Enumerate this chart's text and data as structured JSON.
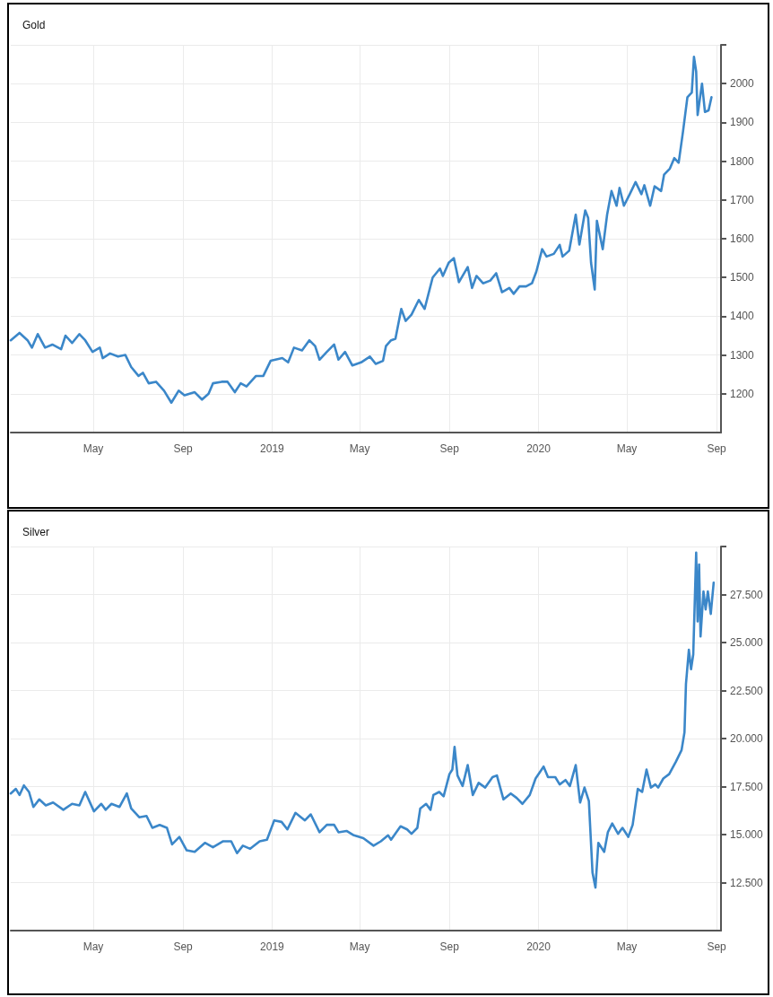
{
  "chart_data": [
    {
      "type": "line",
      "title": "Gold",
      "grid": true,
      "marker": "none",
      "line_style": "solid",
      "xlim": [
        "2018-01-08",
        "2020-09-07"
      ],
      "xticks": [
        {
          "value": "2018-05-01",
          "label": "May"
        },
        {
          "value": "2018-09-01",
          "label": "Sep"
        },
        {
          "value": "2019-01-01",
          "label": "2019"
        },
        {
          "value": "2019-05-01",
          "label": "May"
        },
        {
          "value": "2019-09-01",
          "label": "Sep"
        },
        {
          "value": "2020-01-01",
          "label": "2020"
        },
        {
          "value": "2020-05-01",
          "label": "May"
        },
        {
          "value": "2020-09-01",
          "label": "Sep"
        }
      ],
      "ylim": [
        1100,
        2100
      ],
      "yticks": [
        1200,
        1300,
        1400,
        1500,
        1600,
        1700,
        1800,
        1900,
        2000,
        {
          "value": 2100,
          "label": null
        }
      ],
      "series": [
        {
          "color": "#3b87c9",
          "x": [
            "2018-01-08",
            "2018-01-20",
            "2018-01-31",
            "2018-02-06",
            "2018-02-14",
            "2018-02-24",
            "2018-03-06",
            "2018-03-18",
            "2018-03-24",
            "2018-04-02",
            "2018-04-12",
            "2018-04-20",
            "2018-04-30",
            "2018-05-10",
            "2018-05-14",
            "2018-05-24",
            "2018-06-04",
            "2018-06-14",
            "2018-06-22",
            "2018-07-02",
            "2018-07-08",
            "2018-07-16",
            "2018-07-26",
            "2018-08-06",
            "2018-08-16",
            "2018-08-26",
            "2018-09-03",
            "2018-09-17",
            "2018-09-27",
            "2018-10-06",
            "2018-10-12",
            "2018-10-24",
            "2018-11-01",
            "2018-11-11",
            "2018-11-19",
            "2018-11-27",
            "2018-12-10",
            "2018-12-20",
            "2018-12-30",
            "2019-01-15",
            "2019-01-23",
            "2019-01-31",
            "2019-02-11",
            "2019-02-21",
            "2019-03-01",
            "2019-03-07",
            "2019-03-17",
            "2019-03-27",
            "2019-04-02",
            "2019-04-11",
            "2019-04-21",
            "2019-05-03",
            "2019-05-15",
            "2019-05-23",
            "2019-06-02",
            "2019-06-06",
            "2019-06-13",
            "2019-06-19",
            "2019-06-27",
            "2019-07-03",
            "2019-07-11",
            "2019-07-21",
            "2019-07-29",
            "2019-08-09",
            "2019-08-19",
            "2019-08-23",
            "2019-08-31",
            "2019-09-07",
            "2019-09-14",
            "2019-09-26",
            "2019-10-02",
            "2019-10-08",
            "2019-10-17",
            "2019-10-27",
            "2019-11-04",
            "2019-11-12",
            "2019-11-22",
            "2019-11-28",
            "2019-12-06",
            "2019-12-15",
            "2019-12-23",
            "2019-12-29",
            "2020-01-06",
            "2020-01-12",
            "2020-01-22",
            "2020-01-30",
            "2020-02-03",
            "2020-02-12",
            "2020-02-21",
            "2020-02-26",
            "2020-03-05",
            "2020-03-09",
            "2020-03-13",
            "2020-03-18",
            "2020-03-21",
            "2020-03-29",
            "2020-04-04",
            "2020-04-10",
            "2020-04-17",
            "2020-04-21",
            "2020-04-27",
            "2020-05-05",
            "2020-05-13",
            "2020-05-21",
            "2020-05-25",
            "2020-06-02",
            "2020-06-08",
            "2020-06-17",
            "2020-06-21",
            "2020-06-29",
            "2020-07-05",
            "2020-07-11",
            "2020-07-17",
            "2020-07-23",
            "2020-07-29",
            "2020-08-01",
            "2020-08-04",
            "2020-08-06",
            "2020-08-12",
            "2020-08-16",
            "2020-08-21",
            "2020-08-25"
          ],
          "values": [
            1338,
            1357,
            1338,
            1319,
            1354,
            1319,
            1327,
            1315,
            1350,
            1331,
            1354,
            1338,
            1308,
            1319,
            1292,
            1304,
            1296,
            1300,
            1269,
            1246,
            1254,
            1227,
            1231,
            1208,
            1177,
            1208,
            1196,
            1204,
            1185,
            1200,
            1227,
            1231,
            1231,
            1204,
            1227,
            1219,
            1246,
            1246,
            1285,
            1292,
            1281,
            1319,
            1312,
            1338,
            1323,
            1288,
            1308,
            1327,
            1288,
            1308,
            1273,
            1281,
            1296,
            1277,
            1285,
            1323,
            1338,
            1342,
            1419,
            1388,
            1404,
            1442,
            1419,
            1500,
            1523,
            1504,
            1538,
            1550,
            1488,
            1527,
            1473,
            1504,
            1485,
            1492,
            1511,
            1462,
            1473,
            1458,
            1477,
            1477,
            1485,
            1515,
            1573,
            1554,
            1561,
            1584,
            1554,
            1569,
            1662,
            1585,
            1673,
            1654,
            1538,
            1469,
            1646,
            1573,
            1662,
            1723,
            1685,
            1731,
            1685,
            1715,
            1746,
            1715,
            1738,
            1685,
            1735,
            1723,
            1765,
            1781,
            1808,
            1796,
            1877,
            1965,
            1977,
            2069,
            2031,
            1919,
            2000,
            1927,
            1931,
            1965
          ]
        }
      ]
    },
    {
      "type": "line",
      "title": "Silver",
      "grid": true,
      "marker": "none",
      "line_style": "solid",
      "xlim": [
        "2018-01-08",
        "2020-09-07"
      ],
      "xticks": [
        {
          "value": "2018-05-01",
          "label": "May"
        },
        {
          "value": "2018-09-01",
          "label": "Sep"
        },
        {
          "value": "2019-01-01",
          "label": "2019"
        },
        {
          "value": "2019-05-01",
          "label": "May"
        },
        {
          "value": "2019-09-01",
          "label": "Sep"
        },
        {
          "value": "2020-01-01",
          "label": "2020"
        },
        {
          "value": "2020-05-01",
          "label": "May"
        },
        {
          "value": "2020-09-01",
          "label": "Sep"
        }
      ],
      "ylim": [
        10,
        30
      ],
      "yticks": [
        {
          "value": 12.5,
          "label": "12.500"
        },
        {
          "value": 15,
          "label": "15.000"
        },
        {
          "value": 17.5,
          "label": "17.500"
        },
        {
          "value": 20,
          "label": "20.000"
        },
        {
          "value": 22.5,
          "label": "22.500"
        },
        {
          "value": 25,
          "label": "25.000"
        },
        {
          "value": 27.5,
          "label": "27.500"
        },
        {
          "value": 30,
          "label": null
        }
      ],
      "series": [
        {
          "color": "#3b87c9",
          "x": [
            "2018-01-08",
            "2018-01-15",
            "2018-01-20",
            "2018-01-26",
            "2018-02-02",
            "2018-02-08",
            "2018-02-16",
            "2018-02-25",
            "2018-03-07",
            "2018-03-21",
            "2018-04-02",
            "2018-04-12",
            "2018-04-20",
            "2018-05-02",
            "2018-05-12",
            "2018-05-18",
            "2018-05-26",
            "2018-06-06",
            "2018-06-16",
            "2018-06-22",
            "2018-07-03",
            "2018-07-13",
            "2018-07-21",
            "2018-07-31",
            "2018-08-10",
            "2018-08-17",
            "2018-08-27",
            "2018-09-06",
            "2018-09-17",
            "2018-10-01",
            "2018-10-12",
            "2018-10-26",
            "2018-11-06",
            "2018-11-14",
            "2018-11-22",
            "2018-12-02",
            "2018-12-15",
            "2018-12-25",
            "2019-01-04",
            "2019-01-14",
            "2019-01-22",
            "2019-02-02",
            "2019-02-15",
            "2019-02-23",
            "2019-03-07",
            "2019-03-17",
            "2019-03-27",
            "2019-04-02",
            "2019-04-13",
            "2019-04-23",
            "2019-05-06",
            "2019-05-20",
            "2019-05-30",
            "2019-06-09",
            "2019-06-13",
            "2019-06-26",
            "2019-07-05",
            "2019-07-11",
            "2019-07-19",
            "2019-07-23",
            "2019-07-31",
            "2019-08-06",
            "2019-08-10",
            "2019-08-18",
            "2019-08-24",
            "2019-09-01",
            "2019-09-05",
            "2019-09-08",
            "2019-09-12",
            "2019-09-19",
            "2019-09-26",
            "2019-10-03",
            "2019-10-11",
            "2019-10-20",
            "2019-10-30",
            "2019-11-05",
            "2019-11-14",
            "2019-11-24",
            "2019-12-02",
            "2019-12-10",
            "2019-12-20",
            "2019-12-28",
            "2020-01-08",
            "2020-01-14",
            "2020-01-24",
            "2020-01-30",
            "2020-02-07",
            "2020-02-13",
            "2020-02-21",
            "2020-02-27",
            "2020-03-04",
            "2020-03-10",
            "2020-03-15",
            "2020-03-19",
            "2020-03-23",
            "2020-03-31",
            "2020-04-05",
            "2020-04-11",
            "2020-04-19",
            "2020-04-25",
            "2020-05-03",
            "2020-05-09",
            "2020-05-16",
            "2020-05-22",
            "2020-05-28",
            "2020-06-03",
            "2020-06-09",
            "2020-06-13",
            "2020-06-20",
            "2020-06-28",
            "2020-07-07",
            "2020-07-15",
            "2020-07-19",
            "2020-07-21",
            "2020-07-25",
            "2020-07-28",
            "2020-07-31",
            "2020-08-04",
            "2020-08-06",
            "2020-08-08",
            "2020-08-10",
            "2020-08-14",
            "2020-08-17",
            "2020-08-20",
            "2020-08-24",
            "2020-08-28"
          ],
          "values": [
            17.14,
            17.38,
            17.06,
            17.56,
            17.22,
            16.44,
            16.83,
            16.52,
            16.67,
            16.29,
            16.6,
            16.52,
            17.22,
            16.21,
            16.6,
            16.29,
            16.6,
            16.44,
            17.14,
            16.36,
            15.9,
            15.97,
            15.35,
            15.5,
            15.35,
            14.49,
            14.88,
            14.18,
            14.1,
            14.57,
            14.34,
            14.65,
            14.65,
            14.03,
            14.42,
            14.26,
            14.65,
            14.73,
            15.74,
            15.66,
            15.27,
            16.13,
            15.74,
            16.05,
            15.12,
            15.51,
            15.51,
            15.12,
            15.19,
            14.96,
            14.81,
            14.42,
            14.65,
            14.96,
            14.73,
            15.43,
            15.27,
            15.04,
            15.35,
            16.36,
            16.6,
            16.29,
            17.06,
            17.22,
            16.99,
            18.15,
            18.39,
            19.56,
            18.08,
            17.53,
            18.62,
            17.06,
            17.69,
            17.45,
            17.99,
            18.08,
            16.83,
            17.14,
            16.91,
            16.6,
            17.06,
            17.92,
            18.54,
            17.99,
            17.99,
            17.61,
            17.84,
            17.53,
            18.62,
            16.67,
            17.45,
            16.75,
            13.01,
            12.24,
            14.57,
            14.1,
            15.12,
            15.58,
            15.04,
            15.35,
            14.88,
            15.51,
            17.38,
            17.22,
            18.39,
            17.45,
            17.61,
            17.45,
            17.92,
            18.15,
            18.78,
            19.4,
            20.33,
            22.83,
            24.62,
            23.61,
            24.38,
            29.68,
            26.1,
            29.06,
            25.32,
            27.66,
            26.72,
            27.66,
            26.49,
            28.12
          ]
        }
      ]
    }
  ]
}
